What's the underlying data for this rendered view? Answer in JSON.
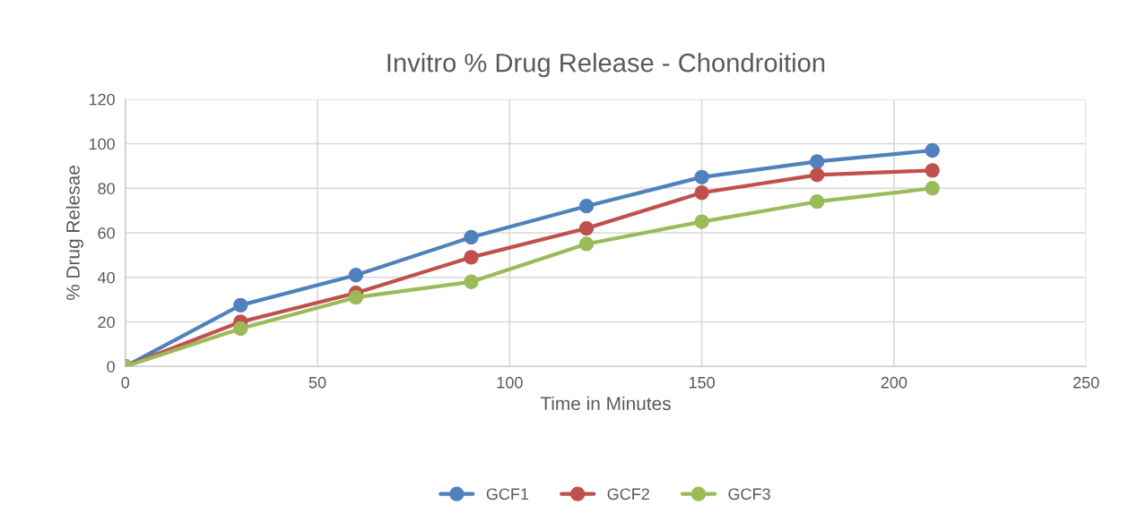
{
  "chart_data": {
    "type": "line",
    "title": "Invitro % Drug Release - Chondroition",
    "xlabel": "Time in Minutes",
    "ylabel": "% Drug Relesae",
    "x": [
      0,
      30,
      60,
      90,
      120,
      150,
      180,
      210
    ],
    "series": [
      {
        "name": "GCF1",
        "color": "#4f81bd",
        "values": [
          0,
          27.5,
          41,
          58,
          72,
          85,
          92,
          97
        ]
      },
      {
        "name": "GCF2",
        "color": "#c0504d",
        "values": [
          0,
          20,
          33,
          49,
          62,
          78,
          86,
          88
        ]
      },
      {
        "name": "GCF3",
        "color": "#9bbb59",
        "values": [
          0,
          17,
          31,
          38,
          55,
          65,
          74,
          80
        ]
      }
    ],
    "xlim": [
      0,
      250
    ],
    "xticks": [
      0,
      50,
      100,
      150,
      200,
      250
    ],
    "ylim": [
      0,
      120
    ],
    "yticks": [
      0,
      20,
      40,
      60,
      80,
      100,
      120
    ],
    "grid": true,
    "legend": "bottom",
    "marker": "circle",
    "line_style": "solid"
  }
}
